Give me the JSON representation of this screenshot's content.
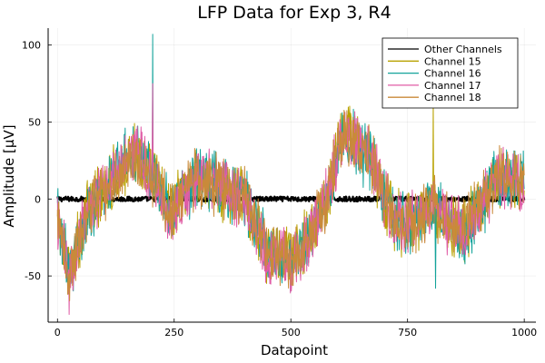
{
  "chart_data": {
    "type": "line",
    "title": "LFP Data for Exp 3, R4",
    "xlabel": "Datapoint",
    "ylabel": "Amplitude [µV]",
    "xlim": [
      -20,
      1025
    ],
    "ylim": [
      -80,
      111
    ],
    "x_ticks": [
      0,
      250,
      500,
      750,
      1000
    ],
    "y_ticks": [
      -50,
      0,
      50,
      100
    ],
    "grid": true,
    "legend_position": "top-right",
    "n_points": 1001,
    "series": [
      {
        "name": "Other Channels",
        "color": "#000000",
        "summary": "flat baseline near 0 µV with noise of about ±2 µV"
      },
      {
        "name": "Channel 15",
        "color": "#b8a200",
        "envelope_x": [
          0,
          25,
          60,
          100,
          170,
          205,
          240,
          300,
          400,
          450,
          500,
          540,
          580,
          615,
          670,
          720,
          760,
          800,
          870,
          940,
          1000
        ],
        "envelope_y": [
          -15,
          -50,
          -10,
          8,
          30,
          15,
          -10,
          15,
          0,
          -35,
          -40,
          -25,
          5,
          45,
          28,
          -15,
          -15,
          -5,
          -22,
          15,
          10
        ]
      },
      {
        "name": "Channel 16",
        "color": "#13a39a",
        "envelope_x": [
          0,
          25,
          60,
          100,
          170,
          205,
          240,
          300,
          400,
          450,
          500,
          540,
          580,
          615,
          670,
          720,
          760,
          800,
          870,
          940,
          1000
        ],
        "envelope_y": [
          -12,
          -48,
          -12,
          10,
          32,
          18,
          -8,
          14,
          2,
          -33,
          -42,
          -24,
          4,
          42,
          25,
          -13,
          -17,
          -4,
          -25,
          12,
          12
        ]
      },
      {
        "name": "Channel 17",
        "color": "#e05ca6",
        "envelope_x": [
          0,
          25,
          60,
          100,
          170,
          205,
          240,
          300,
          400,
          450,
          500,
          540,
          580,
          615,
          670,
          720,
          760,
          800,
          870,
          940,
          1000
        ],
        "envelope_y": [
          -14,
          -52,
          -9,
          9,
          31,
          14,
          -11,
          16,
          -1,
          -36,
          -41,
          -26,
          6,
          46,
          27,
          -16,
          -14,
          -6,
          -23,
          14,
          9
        ]
      },
      {
        "name": "Channel 18",
        "color": "#c98a3a",
        "envelope_x": [
          0,
          25,
          60,
          100,
          170,
          205,
          240,
          300,
          400,
          450,
          500,
          540,
          580,
          615,
          670,
          720,
          760,
          800,
          870,
          940,
          1000
        ],
        "envelope_y": [
          -16,
          -49,
          -11,
          7,
          29,
          16,
          -9,
          15,
          1,
          -34,
          -39,
          -25,
          5,
          44,
          26,
          -14,
          -16,
          -5,
          -21,
          16,
          11
        ]
      }
    ],
    "annotations": [
      {
        "series": "Channel 16",
        "x": 204,
        "y": 107
      },
      {
        "series": "Channel 17",
        "x": 204,
        "y": 75
      },
      {
        "series": "Channel 17",
        "x": 25,
        "y": -75
      },
      {
        "series": "Channel 15",
        "x": 805,
        "y": 64
      },
      {
        "series": "Channel 16",
        "x": 810,
        "y": -58
      }
    ]
  }
}
